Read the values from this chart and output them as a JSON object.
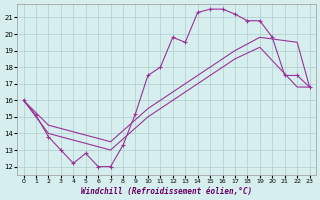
{
  "xlabel": "Windchill (Refroidissement éolien,°C)",
  "xlim": [
    -0.5,
    23.5
  ],
  "ylim": [
    11.5,
    21.8
  ],
  "xticks": [
    0,
    1,
    2,
    3,
    4,
    5,
    6,
    7,
    8,
    9,
    10,
    11,
    12,
    13,
    14,
    15,
    16,
    17,
    18,
    19,
    20,
    21,
    22,
    23
  ],
  "yticks": [
    12,
    13,
    14,
    15,
    16,
    17,
    18,
    19,
    20,
    21
  ],
  "bg_color": "#d6eeee",
  "grid_color": "#b0cccc",
  "line_color": "#993399",
  "curve1_x": [
    0,
    1,
    2,
    3,
    4,
    5,
    6,
    7,
    8,
    9,
    10,
    11,
    12,
    13,
    14,
    15,
    16,
    17,
    18,
    19,
    20,
    21,
    22,
    23
  ],
  "curve1_y": [
    16.0,
    15.1,
    13.8,
    13.0,
    12.2,
    12.8,
    12.0,
    12.0,
    13.3,
    15.2,
    17.5,
    18.0,
    19.8,
    19.5,
    21.3,
    21.5,
    21.5,
    21.2,
    20.8,
    20.8,
    19.8,
    17.5,
    17.5,
    16.8
  ],
  "curve2_x": [
    0,
    2,
    7,
    10,
    12,
    14,
    17,
    19,
    22,
    23
  ],
  "curve2_y": [
    16.0,
    14.5,
    13.5,
    15.5,
    16.5,
    17.5,
    19.0,
    19.8,
    19.5,
    16.8
  ],
  "curve3_x": [
    0,
    2,
    7,
    10,
    12,
    14,
    17,
    19,
    22,
    23
  ],
  "curve3_y": [
    16.0,
    14.0,
    13.0,
    15.0,
    16.0,
    17.0,
    18.5,
    19.2,
    16.8,
    16.8
  ]
}
